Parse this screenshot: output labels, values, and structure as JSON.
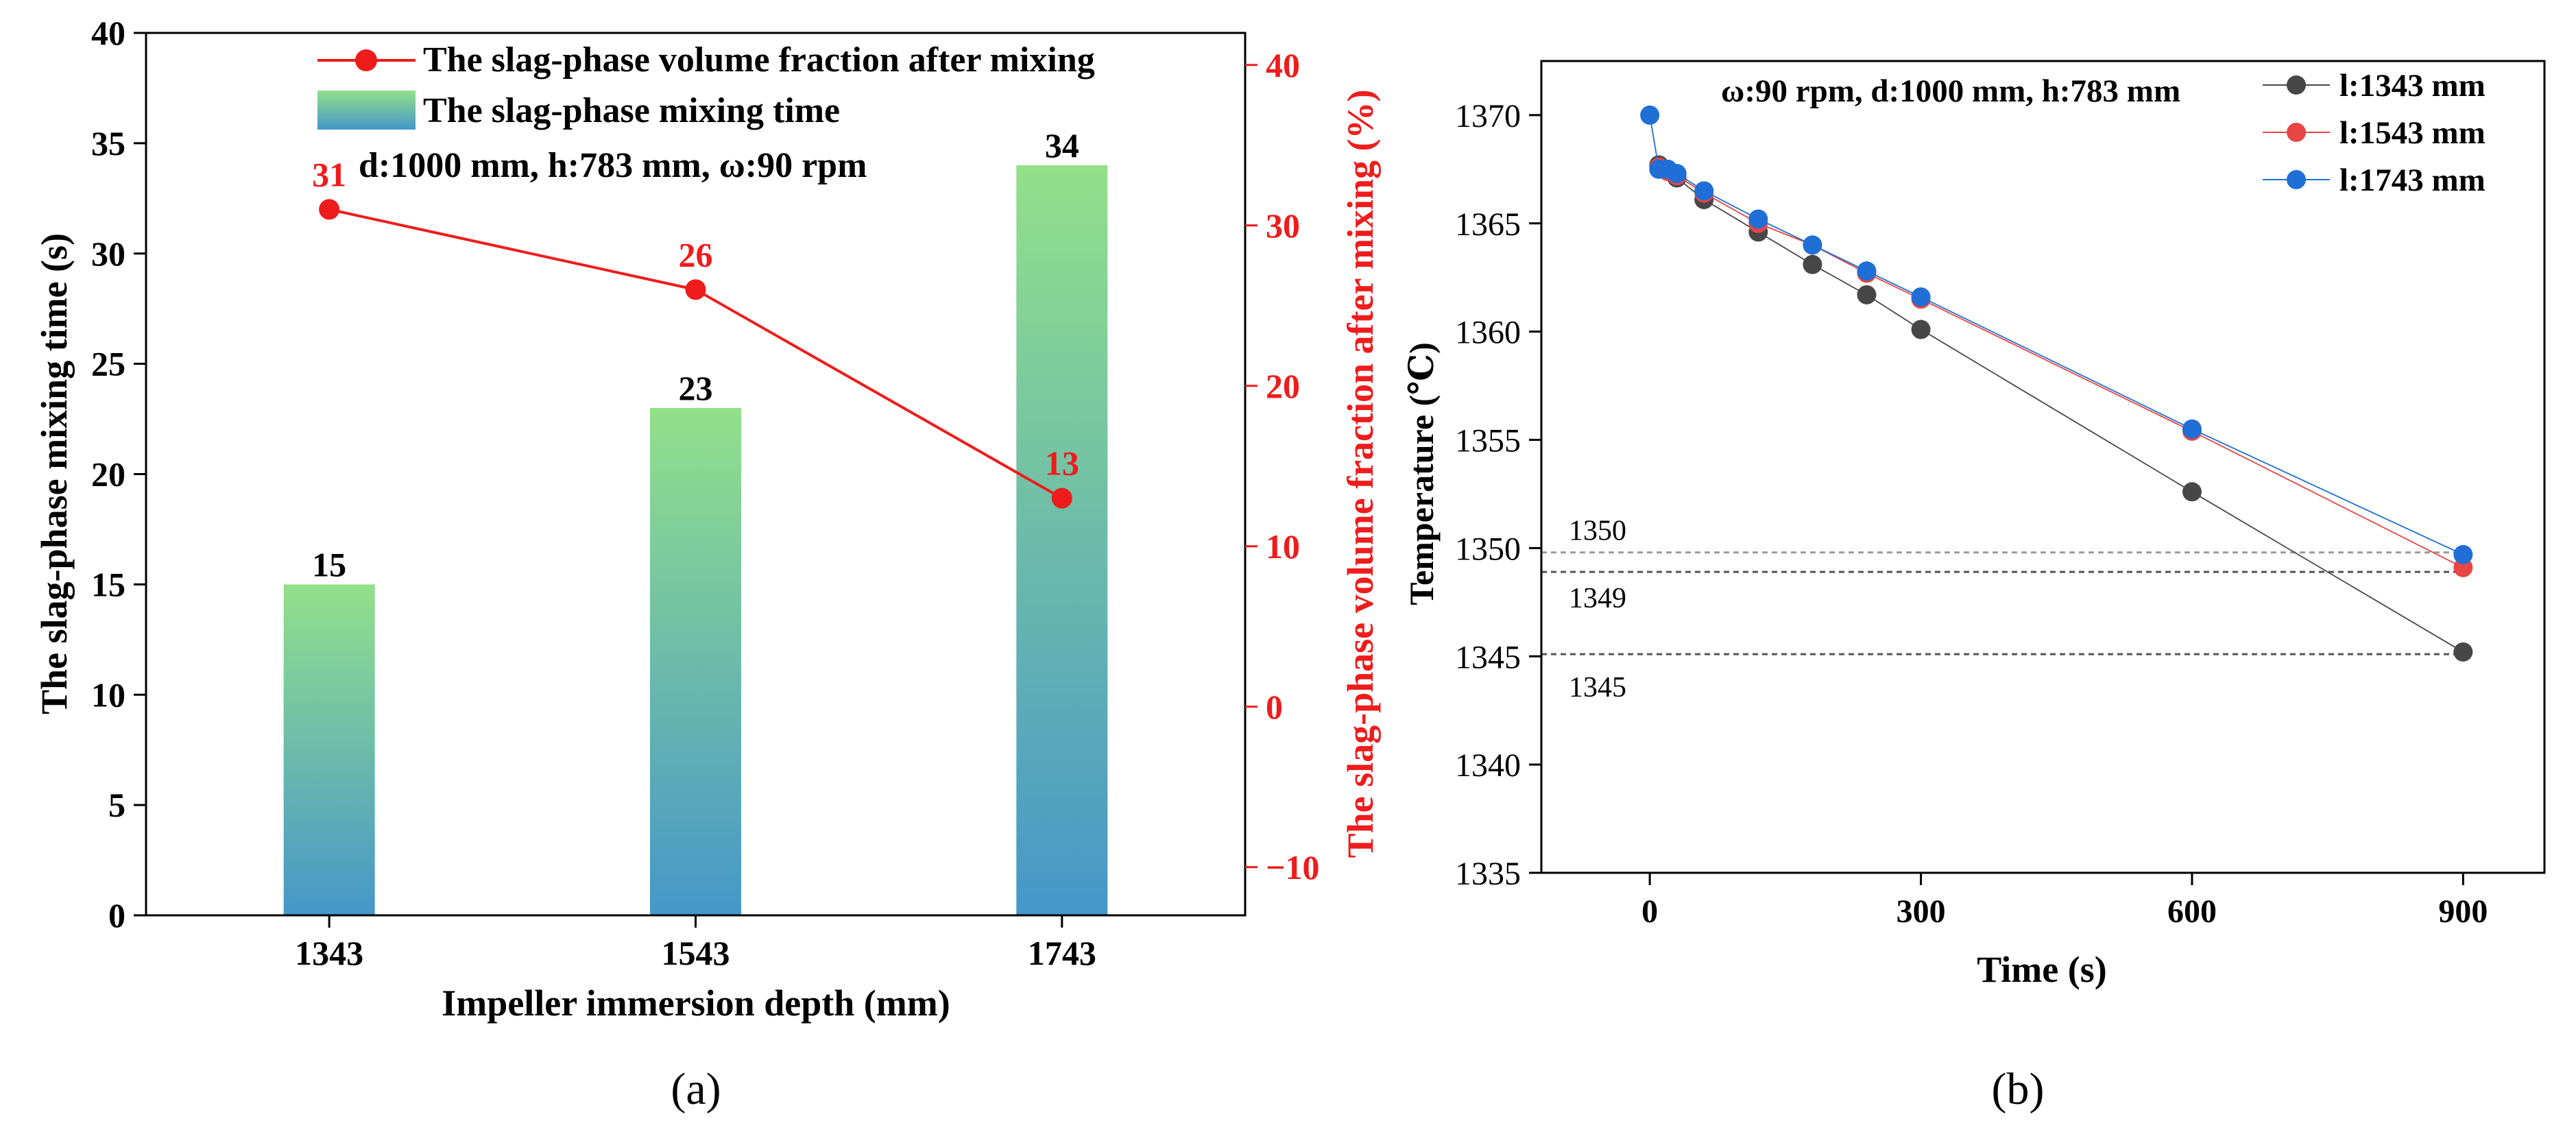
{
  "chart_data": [
    {
      "type": "bar",
      "panel_label": "(a)",
      "categories": [
        "1343",
        "1543",
        "1743"
      ],
      "xlabel": "Impeller immersion depth (mm)",
      "ylabel": "The slag-phase mixing time (s)",
      "ylim": [
        0,
        40
      ],
      "y_ticks": [
        "0",
        "5",
        "10",
        "15",
        "20",
        "25",
        "30",
        "35",
        "40"
      ],
      "bar_series": {
        "name": "The slag-phase mixing time",
        "values": [
          15,
          23,
          34
        ],
        "labels": [
          "15",
          "23",
          "34"
        ],
        "gradient_top": "#93e08a",
        "gradient_bottom": "#4597c9"
      },
      "line_series": {
        "name": "The slag-phase volume fraction after mixing",
        "values": [
          31,
          26,
          13
        ],
        "labels": [
          "31",
          "26",
          "13"
        ],
        "color": "#ee1c1c",
        "axis": "right"
      },
      "y2label": "The slag-phase volume fraction after mixing (%)",
      "y2lim": [
        -13,
        42
      ],
      "y2_ticks": [
        "−10",
        "0",
        "10",
        "20",
        "30",
        "40"
      ],
      "annotation": "d:1000 mm, h:783 mm, ω:90 rpm"
    },
    {
      "type": "scatter",
      "panel_label": "(b)",
      "xlabel": "Time (s)",
      "ylabel": "Temperature (℃)",
      "xlim": [
        -120,
        990
      ],
      "ylim": [
        1335,
        1372.5
      ],
      "x_ticks": [
        "0",
        "300",
        "600",
        "900"
      ],
      "y_ticks": [
        "1335",
        "1340",
        "1345",
        "1350",
        "1355",
        "1360",
        "1365",
        "1370"
      ],
      "annotation": "ω:90 rpm, d:1000 mm, h:783 mm",
      "reference_lines": [
        {
          "value": 1349.8,
          "label": "1350"
        },
        {
          "value": 1348.9,
          "label": "1349"
        },
        {
          "value": 1345.1,
          "label": "1345"
        }
      ],
      "series": [
        {
          "name": "l:1343 mm",
          "color": "#474747",
          "x": [
            10,
            20,
            30,
            60,
            120,
            180,
            240,
            300,
            600,
            900
          ],
          "y": [
            1367.7,
            1367.4,
            1367.1,
            1366.1,
            1364.6,
            1363.1,
            1361.7,
            1360.1,
            1352.6,
            1345.2
          ]
        },
        {
          "name": "l:1543 mm",
          "color": "#e84545",
          "x": [
            10,
            20,
            30,
            60,
            120,
            180,
            240,
            300,
            600,
            900
          ],
          "y": [
            1367.6,
            1367.4,
            1367.2,
            1366.4,
            1365.0,
            1364.0,
            1362.7,
            1361.5,
            1355.4,
            1349.1
          ]
        },
        {
          "name": "l:1743 mm",
          "color": "#1f6fd6",
          "x": [
            0,
            10,
            20,
            30,
            60,
            120,
            180,
            240,
            300,
            600,
            900
          ],
          "y": [
            1370.0,
            1367.5,
            1367.5,
            1367.3,
            1366.5,
            1365.2,
            1364.0,
            1362.8,
            1361.6,
            1355.5,
            1349.7
          ]
        }
      ]
    }
  ]
}
